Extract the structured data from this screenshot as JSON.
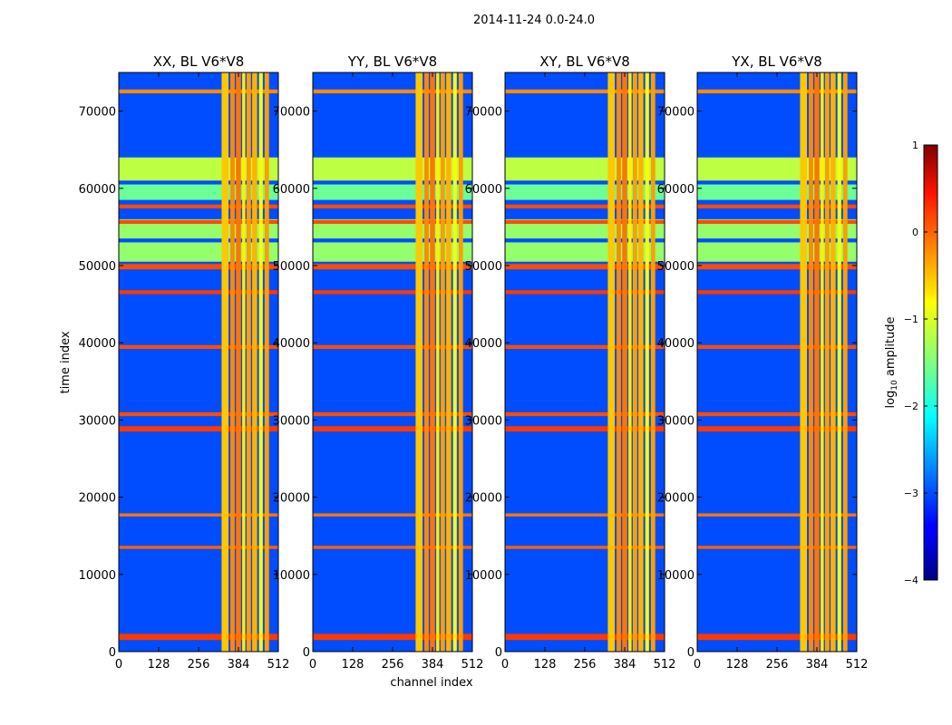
{
  "figure": {
    "suptitle": "2014-11-24 0.0-24.0",
    "ylabel": "time index",
    "xlabel": "channel index"
  },
  "colorbar": {
    "label_prefix": "log",
    "label_sub": "10",
    "label_suffix": " amplitude",
    "range": [
      -4,
      1
    ],
    "ticks": [
      1,
      0,
      -1,
      -2,
      -3,
      -4
    ],
    "tick_labels": [
      "1",
      "0",
      "−1",
      "−2",
      "−3",
      "−4"
    ],
    "colormap": "jet"
  },
  "chart_data": {
    "type": "heatmap",
    "x_range": [
      0,
      512
    ],
    "y_range": [
      0,
      75000
    ],
    "x_ticks": [
      0,
      128,
      256,
      384,
      512
    ],
    "x_tick_labels": [
      "0",
      "128",
      "256",
      "384",
      "512"
    ],
    "y_ticks": [
      0,
      10000,
      20000,
      30000,
      40000,
      50000,
      60000,
      70000
    ],
    "y_tick_labels": [
      "0",
      "10000",
      "20000",
      "30000",
      "40000",
      "50000",
      "60000",
      "70000"
    ],
    "value_label": "log10 amplitude",
    "value_range": [
      -4,
      1
    ],
    "panels": [
      {
        "title": "XX, BL V6*V8",
        "polarization": "XX"
      },
      {
        "title": "YY, BL V6*V8",
        "polarization": "YY"
      },
      {
        "title": "XY, BL V6*V8",
        "polarization": "XY"
      },
      {
        "title": "YX, BL V6*V8",
        "polarization": "YX"
      }
    ],
    "background_level": -3.0,
    "rfi_channel_bands": [
      [
        330,
        352,
        -0.6
      ],
      [
        358,
        372,
        -0.3
      ],
      [
        376,
        392,
        -0.2
      ],
      [
        396,
        406,
        -0.8
      ],
      [
        410,
        424,
        -0.4
      ],
      [
        428,
        444,
        -0.5
      ],
      [
        450,
        462,
        -0.9
      ],
      [
        468,
        482,
        -0.4
      ]
    ],
    "rfi_time_bands": [
      [
        58500,
        60500,
        -1.6
      ],
      [
        50500,
        53000,
        -1.4
      ],
      [
        53500,
        56000,
        -1.4
      ],
      [
        61000,
        64000,
        -1.2
      ],
      [
        1500,
        2300,
        0.1
      ],
      [
        28500,
        29200,
        0.1
      ],
      [
        30500,
        31000,
        0.0
      ],
      [
        46300,
        46800,
        0.1
      ],
      [
        49500,
        50200,
        0.0
      ],
      [
        55400,
        55900,
        0.0
      ],
      [
        57400,
        57900,
        0.0
      ],
      [
        13300,
        13700,
        -0.1
      ],
      [
        17500,
        17900,
        -0.2
      ],
      [
        39200,
        39700,
        0.0
      ],
      [
        72300,
        72800,
        -0.3
      ]
    ]
  }
}
